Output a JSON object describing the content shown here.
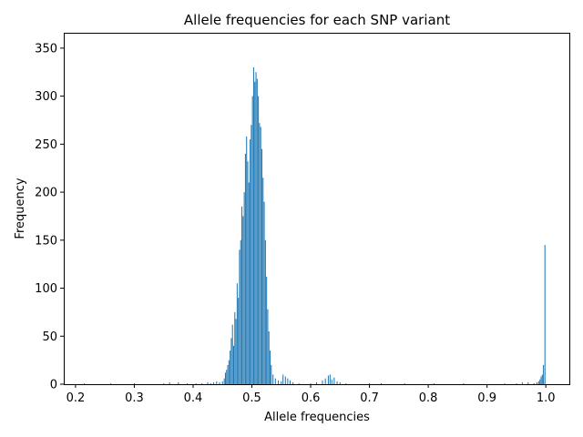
{
  "chart_data": {
    "type": "bar",
    "title": "Allele frequencies for each SNP variant",
    "xlabel": "Allele frequencies",
    "ylabel": "Frequency",
    "xlim": [
      0.18,
      1.04
    ],
    "ylim": [
      0,
      366
    ],
    "xticks": [
      0.2,
      0.3,
      0.4,
      0.5,
      0.6,
      0.7,
      0.8,
      0.9,
      1.0
    ],
    "xtick_labels": [
      "0.2",
      "0.3",
      "0.4",
      "0.5",
      "0.6",
      "0.7",
      "0.8",
      "0.9",
      "1.0"
    ],
    "yticks": [
      0,
      50,
      100,
      150,
      200,
      250,
      300,
      350
    ],
    "ytick_labels": [
      "0",
      "50",
      "100",
      "150",
      "200",
      "250",
      "300",
      "350"
    ],
    "grid": false,
    "color": "#1f77b4",
    "bin_width": 0.0016,
    "bins": [
      {
        "x": 0.215,
        "value": 1
      },
      {
        "x": 0.26,
        "value": 1
      },
      {
        "x": 0.3,
        "value": 1
      },
      {
        "x": 0.35,
        "value": 1
      },
      {
        "x": 0.36,
        "value": 2
      },
      {
        "x": 0.375,
        "value": 2
      },
      {
        "x": 0.39,
        "value": 1
      },
      {
        "x": 0.405,
        "value": 1
      },
      {
        "x": 0.415,
        "value": 1
      },
      {
        "x": 0.425,
        "value": 2
      },
      {
        "x": 0.43,
        "value": 1
      },
      {
        "x": 0.435,
        "value": 2
      },
      {
        "x": 0.44,
        "value": 3
      },
      {
        "x": 0.445,
        "value": 2
      },
      {
        "x": 0.45,
        "value": 3
      },
      {
        "x": 0.453,
        "value": 6
      },
      {
        "x": 0.455,
        "value": 12
      },
      {
        "x": 0.457,
        "value": 15
      },
      {
        "x": 0.459,
        "value": 20
      },
      {
        "x": 0.461,
        "value": 25
      },
      {
        "x": 0.463,
        "value": 35
      },
      {
        "x": 0.465,
        "value": 48
      },
      {
        "x": 0.467,
        "value": 62
      },
      {
        "x": 0.469,
        "value": 40
      },
      {
        "x": 0.471,
        "value": 75
      },
      {
        "x": 0.473,
        "value": 68
      },
      {
        "x": 0.475,
        "value": 105
      },
      {
        "x": 0.477,
        "value": 90
      },
      {
        "x": 0.479,
        "value": 140
      },
      {
        "x": 0.481,
        "value": 150
      },
      {
        "x": 0.483,
        "value": 185
      },
      {
        "x": 0.485,
        "value": 175
      },
      {
        "x": 0.487,
        "value": 200
      },
      {
        "x": 0.489,
        "value": 240
      },
      {
        "x": 0.491,
        "value": 258
      },
      {
        "x": 0.493,
        "value": 232
      },
      {
        "x": 0.495,
        "value": 210
      },
      {
        "x": 0.497,
        "value": 255
      },
      {
        "x": 0.499,
        "value": 270
      },
      {
        "x": 0.501,
        "value": 300
      },
      {
        "x": 0.503,
        "value": 330
      },
      {
        "x": 0.505,
        "value": 315
      },
      {
        "x": 0.507,
        "value": 325
      },
      {
        "x": 0.509,
        "value": 318
      },
      {
        "x": 0.511,
        "value": 300
      },
      {
        "x": 0.513,
        "value": 272
      },
      {
        "x": 0.515,
        "value": 268
      },
      {
        "x": 0.517,
        "value": 245
      },
      {
        "x": 0.519,
        "value": 215
      },
      {
        "x": 0.521,
        "value": 190
      },
      {
        "x": 0.523,
        "value": 150
      },
      {
        "x": 0.525,
        "value": 112
      },
      {
        "x": 0.527,
        "value": 78
      },
      {
        "x": 0.529,
        "value": 55
      },
      {
        "x": 0.531,
        "value": 35
      },
      {
        "x": 0.533,
        "value": 20
      },
      {
        "x": 0.536,
        "value": 10
      },
      {
        "x": 0.54,
        "value": 6
      },
      {
        "x": 0.545,
        "value": 4
      },
      {
        "x": 0.55,
        "value": 3
      },
      {
        "x": 0.553,
        "value": 10
      },
      {
        "x": 0.557,
        "value": 8
      },
      {
        "x": 0.561,
        "value": 6
      },
      {
        "x": 0.565,
        "value": 4
      },
      {
        "x": 0.57,
        "value": 2
      },
      {
        "x": 0.58,
        "value": 1
      },
      {
        "x": 0.6,
        "value": 1
      },
      {
        "x": 0.61,
        "value": 2
      },
      {
        "x": 0.62,
        "value": 4
      },
      {
        "x": 0.625,
        "value": 6
      },
      {
        "x": 0.63,
        "value": 9
      },
      {
        "x": 0.633,
        "value": 10
      },
      {
        "x": 0.636,
        "value": 5
      },
      {
        "x": 0.64,
        "value": 7
      },
      {
        "x": 0.645,
        "value": 3
      },
      {
        "x": 0.65,
        "value": 2
      },
      {
        "x": 0.66,
        "value": 1
      },
      {
        "x": 0.7,
        "value": 1
      },
      {
        "x": 0.72,
        "value": 1
      },
      {
        "x": 0.76,
        "value": 1
      },
      {
        "x": 0.81,
        "value": 1
      },
      {
        "x": 0.86,
        "value": 1
      },
      {
        "x": 0.93,
        "value": 1
      },
      {
        "x": 0.95,
        "value": 1
      },
      {
        "x": 0.96,
        "value": 2
      },
      {
        "x": 0.97,
        "value": 2
      },
      {
        "x": 0.98,
        "value": 1
      },
      {
        "x": 0.985,
        "value": 2
      },
      {
        "x": 0.988,
        "value": 3
      },
      {
        "x": 0.99,
        "value": 5
      },
      {
        "x": 0.992,
        "value": 8
      },
      {
        "x": 0.994,
        "value": 10
      },
      {
        "x": 0.996,
        "value": 20
      },
      {
        "x": 0.9985,
        "value": 145
      }
    ]
  }
}
